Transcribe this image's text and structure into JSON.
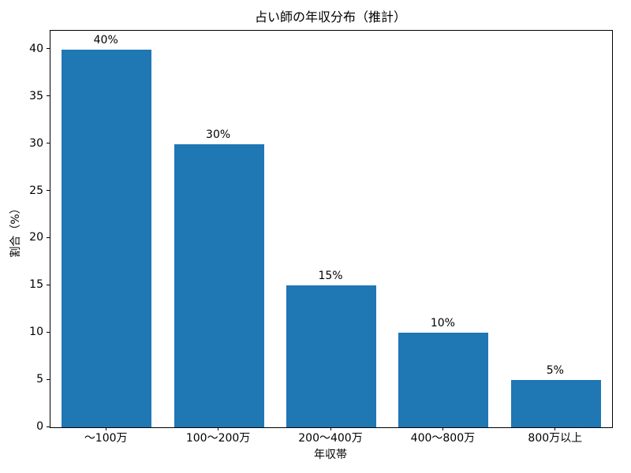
{
  "chart_data": {
    "type": "bar",
    "title": "占い師の年収分布（推計）",
    "xlabel": "年収帯",
    "ylabel": "割合（%）",
    "categories": [
      "～100万",
      "100～200万",
      "200～400万",
      "400～800万",
      "800万以上"
    ],
    "values": [
      40,
      30,
      15,
      10,
      5
    ],
    "bar_labels": [
      "40%",
      "30%",
      "15%",
      "10%",
      "5%"
    ],
    "yticks": [
      0,
      5,
      10,
      15,
      20,
      25,
      30,
      35,
      40
    ],
    "ylim": [
      0,
      42
    ],
    "bar_color": "#1f77b4",
    "axis_color": "#000000",
    "grid": false,
    "legend": null
  }
}
